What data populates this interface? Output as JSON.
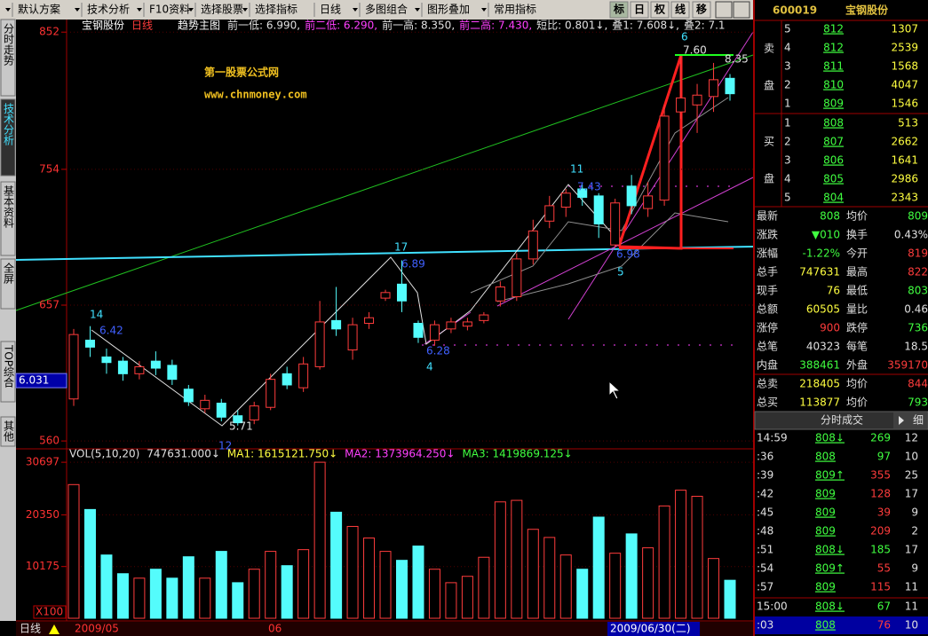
{
  "toolbar": {
    "menus": [
      "默认方案",
      "技术分析",
      "F10资料",
      "选择股票",
      "选择指标",
      "日线",
      "多图组合",
      "图形叠加",
      "常用指标"
    ],
    "buttons": [
      "标",
      "日",
      "权",
      "线",
      "移"
    ]
  },
  "side_tabs": [
    "分时走势",
    "技术分析",
    "基本资料",
    "全屏",
    "TOP综合",
    "其他"
  ],
  "watermark": [
    "第一股票公式网",
    "www.chnmoney.com"
  ],
  "chart_data": [
    {
      "type": "candlestick",
      "title": "宝钢股份",
      "period": "日线",
      "indicator": "趋势主图",
      "legend": [
        "前一低: 6.990,",
        "前二低: 6.290,",
        "前一高: 8.350,",
        "前二高: 7.430,",
        "短比: 0.801↓,",
        "叠1: 7.608↓,",
        "叠2: 7.1"
      ],
      "open": [
        590,
        632,
        620,
        617,
        608,
        617,
        614,
        597,
        583,
        587,
        578,
        575,
        584,
        608,
        598,
        613,
        646,
        625,
        644,
        662,
        672,
        644,
        632,
        640,
        642,
        646,
        660,
        663,
        690,
        717,
        727,
        740,
        735,
        700,
        742,
        726,
        732,
        795,
        800,
        806,
        819
      ],
      "high": [
        640,
        642,
        626,
        620,
        617,
        624,
        618,
        600,
        593,
        590,
        582,
        588,
        608,
        613,
        620,
        660,
        670,
        648,
        652,
        668,
        689,
        646,
        646,
        648,
        648,
        652,
        674,
        694,
        718,
        735,
        740,
        743,
        737,
        733,
        750,
        745,
        800,
        835,
        815,
        830,
        822
      ],
      "low": [
        585,
        620,
        608,
        603,
        604,
        607,
        600,
        585,
        580,
        574,
        571,
        572,
        582,
        597,
        595,
        611,
        635,
        618,
        640,
        660,
        652,
        630,
        628,
        637,
        639,
        644,
        656,
        660,
        686,
        712,
        720,
        728,
        705,
        698,
        722,
        720,
        728,
        790,
        780,
        795,
        803
      ],
      "close": [
        636,
        627,
        616,
        608,
        613,
        612,
        604,
        588,
        589,
        577,
        573,
        585,
        604,
        600,
        615,
        645,
        640,
        643,
        648,
        666,
        660,
        634,
        643,
        645,
        645,
        650,
        670,
        690,
        710,
        728,
        737,
        734,
        715,
        730,
        728,
        735,
        792,
        805,
        807,
        818,
        808
      ],
      "up_color": "#ff3c3c",
      "down_color": "#54fcfc",
      "ylim": [
        555,
        861
      ],
      "yticks": [
        852,
        754,
        657,
        560
      ],
      "grid": true,
      "cursor": {
        "value": 603.1,
        "label": "6.031"
      },
      "annotations": [
        "14",
        "6.42",
        "12",
        "5.71",
        "17",
        "6.89",
        "4",
        "6.28",
        "11",
        "7.43",
        "5",
        "6.98",
        "6",
        "7.60",
        "8.35"
      ]
    },
    {
      "type": "bar",
      "indicator": "VOL(5,10,20)",
      "legend": [
        "747631.000↓",
        "MA1: 1615121.750↓",
        "MA2: 1373964.250↓",
        "MA3: 1419869.125↓"
      ],
      "values": [
        26300,
        21400,
        12450,
        8770,
        7890,
        9650,
        7890,
        12100,
        7890,
        13160,
        7000,
        9650,
        13160,
        10350,
        13500,
        30700,
        20870,
        18070,
        15790,
        13160,
        11400,
        14210,
        9650,
        7000,
        8250,
        12000,
        22900,
        23200,
        17500,
        15900,
        12450,
        9650,
        19900,
        12800,
        16600,
        13860,
        22100,
        25200,
        24000,
        11750,
        7476.31
      ],
      "ylim": [
        0,
        33160
      ],
      "yticks": [
        30697,
        20350,
        10175
      ],
      "unit": "X100"
    }
  ],
  "x_labels": [
    "2009/05",
    "06"
  ],
  "cursor_date": "2009/06/30(二)",
  "period_button": "日线",
  "quote": {
    "code": "600019",
    "name": "宝钢股份",
    "sell_label": [
      "卖",
      "盘"
    ],
    "buy_label": [
      "买",
      "盘"
    ],
    "asks": [
      [
        5,
        812,
        1307
      ],
      [
        4,
        812,
        2539
      ],
      [
        3,
        811,
        1568
      ],
      [
        2,
        810,
        4047
      ],
      [
        1,
        809,
        1546
      ]
    ],
    "bids": [
      [
        1,
        808,
        513
      ],
      [
        2,
        807,
        2662
      ],
      [
        3,
        806,
        1641
      ],
      [
        4,
        805,
        2986
      ],
      [
        5,
        804,
        2343
      ]
    ],
    "stats": [
      [
        "最新",
        808,
        "均价",
        809
      ],
      [
        "涨跌",
        "▼010",
        "换手",
        "0.43%"
      ],
      [
        "涨幅",
        "-1.22%",
        "今开",
        819
      ],
      [
        "总手",
        747631,
        "最高",
        822
      ],
      [
        "现手",
        76,
        "最低",
        803
      ],
      [
        "总额",
        60505,
        "量比",
        0.46
      ],
      [
        "涨停",
        900,
        "跌停",
        736
      ],
      [
        "总笔",
        40323,
        "每笔",
        18.5
      ],
      [
        "内盘",
        388461,
        "外盘",
        359170
      ]
    ],
    "totals": [
      [
        "总卖",
        218405,
        "均价",
        844
      ],
      [
        "总买",
        113877,
        "均价",
        793
      ]
    ]
  },
  "trades": {
    "title": "分时成交",
    "detail": "细",
    "rows": [
      [
        "14:59",
        "808↓",
        269,
        12
      ],
      [
        ":36",
        808,
        97,
        10
      ],
      [
        ":39",
        "809↑",
        355,
        25
      ],
      [
        ":42",
        809,
        128,
        17
      ],
      [
        ":45",
        809,
        39,
        9
      ],
      [
        ":48",
        809,
        209,
        2
      ],
      [
        ":51",
        "808↓",
        185,
        17
      ],
      [
        ":54",
        "809↑",
        55,
        9
      ],
      [
        ":57",
        809,
        115,
        11
      ],
      [
        "15:00",
        "808↓",
        67,
        11
      ],
      [
        ":03",
        808,
        76,
        10
      ]
    ]
  }
}
